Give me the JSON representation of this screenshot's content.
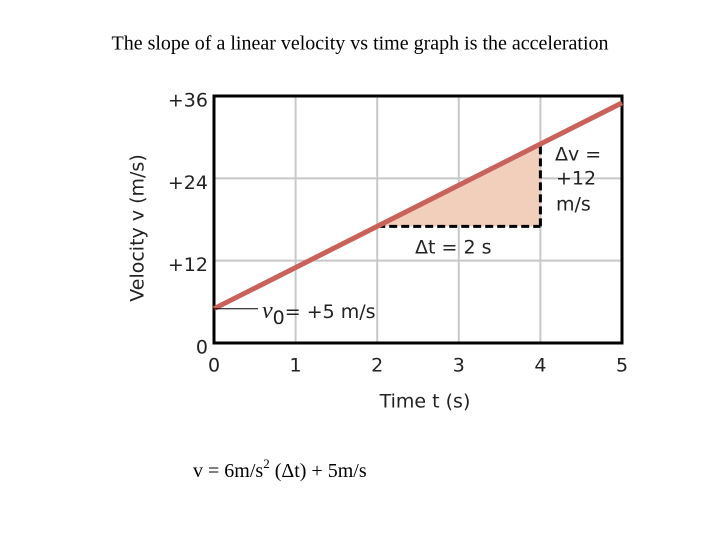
{
  "chart_data": {
    "type": "line",
    "title": "The slope of a linear velocity vs time graph is the acceleration",
    "x_label": "Time  t  (s)",
    "y_label": "Velocity  v  (m/s)",
    "x": [
      0,
      5
    ],
    "series": [
      {
        "name": "velocity",
        "color": "#c8625a",
        "values": [
          5,
          35
        ]
      }
    ],
    "xlim": [
      0,
      5
    ],
    "xticks": [
      0,
      1,
      2,
      3,
      4,
      5
    ],
    "ylim": [
      0,
      36
    ],
    "yticks": [
      0,
      {
        "value": 12,
        "label": "+12"
      },
      {
        "value": 24,
        "label": "+24"
      },
      {
        "value": 36,
        "label": "+36"
      }
    ],
    "grid": true,
    "slope_triangle": {
      "x": [
        2,
        4
      ],
      "y": [
        17,
        29
      ],
      "color": "#f2cfbb"
    },
    "annotations": {
      "dv_1": "Δv =",
      "dv_2": "+12",
      "dv_3": "m/s",
      "dt": "Δt  = 2 s",
      "v0_symbol": "v",
      "v0_sub": "0",
      "v0_text": "= +5 m/s"
    },
    "formula": {
      "before": "v = 6m/s",
      "sup": "2",
      "after": " (Δt) + 5m/s"
    }
  }
}
